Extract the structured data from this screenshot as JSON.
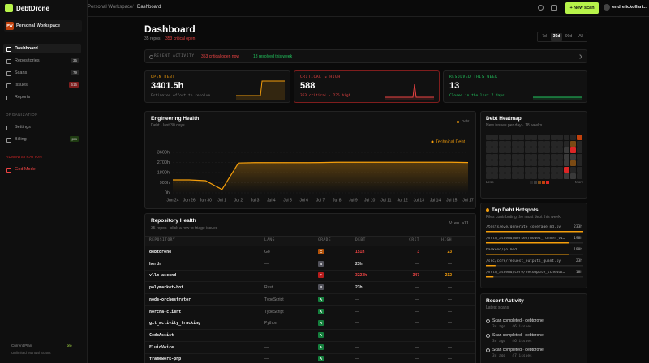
{
  "sidebar": {
    "brand": "DebtDrone",
    "workspace_badge": "PW",
    "workspace": "Personal Workspace",
    "nav": [
      {
        "label": "Dashboard"
      },
      {
        "label": "Repositories",
        "count": 35,
        "badge_color": "#262626"
      },
      {
        "label": "Scans",
        "count": 79,
        "badge_color": "#262626"
      },
      {
        "label": "Issues",
        "count": 515,
        "badge_color": "#7f1d1d"
      },
      {
        "label": "Reports"
      }
    ],
    "org_heading": "ORGANIZATION",
    "org_nav": [
      {
        "label": "Settings"
      },
      {
        "label": "Billing",
        "count": "pro",
        "badge_color": "#1f3b12"
      }
    ],
    "admin_heading": "ADMINISTRATION",
    "admin_nav": [
      {
        "label": "God Mode"
      }
    ],
    "plan_label": "Current Plan",
    "plan": "pro",
    "plan_note": "Unlimited Manual Scans"
  },
  "topbar": {
    "breadcrumb": [
      "Personal Workspace",
      "Dashboard"
    ],
    "separator": "/",
    "new_scan": "+ New scan",
    "user": "endrelickollari..."
  },
  "header": {
    "title": "Dashboard",
    "repos": "35 repos",
    "critical": "353 critical open",
    "ranges": [
      "7d",
      "30d",
      "90d",
      "All"
    ],
    "active_range": 1
  },
  "activity": {
    "label": "RECENT ACTIVITY",
    "critical": "353 critical open now",
    "resolved": "13 resolved this week"
  },
  "stats": [
    {
      "label": "OPEN DEBT",
      "value": "3401.5h",
      "note": "Estimated effort to resolve",
      "color": "#f59e0b"
    },
    {
      "label": "CRITICAL & HIGH",
      "value": "588",
      "note": "353 critical · 235 high",
      "color": "#ef4444"
    },
    {
      "label": "RESOLVED THIS WEEK",
      "value": "13",
      "note": "Closed in the last 7 days",
      "color": "#22c55e"
    }
  ],
  "chart_data": {
    "type": "line",
    "title": "Engineering Health",
    "subtitle": "Debt · last 30 days",
    "legend_label": "Debt",
    "categories": [
      "Jun 24",
      "Jun 26",
      "Jun 30",
      "Jul 1",
      "Jul 2",
      "Jul 3",
      "Jul 4",
      "Jul 5",
      "Jul 6",
      "Jul 7",
      "Jul 8",
      "Jul 9",
      "Jul 10",
      "Jul 11",
      "Jul 12",
      "Jul 13",
      "Jul 14",
      "Jul 15",
      "Jul 17"
    ],
    "series": [
      {
        "name": "Technical Debt",
        "color": "#f59e0b",
        "values": [
          1150,
          1150,
          1080,
          300,
          2650,
          2680,
          2680,
          2680,
          2680,
          2690,
          2720,
          2720,
          2720,
          2720,
          2720,
          2720,
          2720,
          2720,
          2690
        ]
      }
    ],
    "ylim": [
      0,
      3600
    ],
    "yticks": [
      {
        "value": 0,
        "label": "0h"
      },
      {
        "value": 900,
        "label": "900h"
      },
      {
        "value": 1800,
        "label": "1800h"
      },
      {
        "value": 2700,
        "label": "2700h"
      },
      {
        "value": 3600,
        "label": "3600h"
      }
    ],
    "grid": true,
    "area": true
  },
  "heatmap": {
    "title": "Debt Heatmap",
    "subtitle": "New issues per day · 18 weeks",
    "less": "Less",
    "more": "More",
    "colors": [
      "#262626",
      "#3a3a3a",
      "#7a4a14",
      "#c2410c",
      "#dc2626"
    ],
    "values": [
      [
        0,
        0,
        0,
        0,
        0,
        0,
        0,
        0,
        0,
        0,
        0,
        0,
        0,
        0,
        3
      ],
      [
        0,
        0,
        0,
        0,
        0,
        0,
        0,
        0,
        0,
        0,
        0,
        0,
        0,
        2,
        0
      ],
      [
        0,
        0,
        0,
        0,
        0,
        0,
        0,
        0,
        0,
        0,
        0,
        0,
        1,
        4,
        0
      ],
      [
        0,
        0,
        0,
        0,
        0,
        0,
        0,
        0,
        0,
        0,
        0,
        0,
        1,
        1,
        0
      ],
      [
        0,
        0,
        0,
        0,
        0,
        0,
        0,
        0,
        0,
        0,
        0,
        0,
        1,
        2,
        0
      ],
      [
        0,
        0,
        0,
        0,
        0,
        0,
        0,
        0,
        0,
        0,
        0,
        0,
        4,
        0,
        0
      ],
      [
        0,
        0,
        0,
        0,
        0,
        0,
        0,
        0,
        0,
        0,
        0,
        0,
        1,
        1,
        0
      ]
    ]
  },
  "hotspots": {
    "title": "Top Debt Hotspots",
    "subtitle": "Files contributing the most debt this week",
    "files": [
      "/tests/e2e/generate_coverage_md.py",
      "/vllm_ascend/worker/model_runner_v1.py",
      "backend/go.mod",
      "/src/core/request_outputs_quant.py",
      "/vllm_ascend/core/recompute_scheduler.py"
    ],
    "values": [
      233,
      198,
      198,
      23,
      18
    ],
    "value_labels": [
      "233h",
      "198h",
      "198h",
      "23h",
      "18h"
    ],
    "color": "#f59e0b"
  },
  "recent": {
    "title": "Recent Activity",
    "subtitle": "Latest scans",
    "items": [
      {
        "title": "Scan completed · debtdrone",
        "meta": "3d ago · 46 issues"
      },
      {
        "title": "Scan completed · debtdrone",
        "meta": "3d ago · 46 issues"
      },
      {
        "title": "Scan completed · debtdrone",
        "meta": "3d ago · 47 issues"
      }
    ]
  },
  "repo_health": {
    "title": "Repository Health",
    "subtitle": "35 repos · click a row to triage issues",
    "view_all": "View all",
    "columns": [
      "REPOSITORY",
      "LANG",
      "GRADE",
      "DEBT",
      "CRIT",
      "HIGH"
    ],
    "rows": [
      [
        "debtdrone",
        "Go",
        "C",
        "151h",
        "3",
        "23"
      ],
      [
        "herdr",
        "—",
        "B",
        "23h",
        "—",
        "—"
      ],
      [
        "vllm-ascend",
        "—",
        "F",
        "3223h",
        "347",
        "212"
      ],
      [
        "polymarket-bot",
        "Rust",
        "B",
        "23h",
        "—",
        "—"
      ],
      [
        "node-orchestrator",
        "TypeScript",
        "A",
        "—",
        "—",
        "—"
      ],
      [
        "norcha-client",
        "TypeScript",
        "A",
        "—",
        "—",
        "—"
      ],
      [
        "git_activity_tracking",
        "Python",
        "A",
        "—",
        "—",
        "—"
      ],
      [
        "CodeAssist",
        "—",
        "A",
        "—",
        "—",
        "—"
      ],
      [
        "FluidVoice",
        "—",
        "A",
        "—",
        "—",
        "—"
      ],
      [
        "framework-php",
        "—",
        "A",
        "—",
        "—",
        "—"
      ]
    ],
    "grade_colors": [
      "#b45309",
      "#52525b",
      "#b91c1c",
      "#52525b",
      "#15803d",
      "#15803d",
      "#15803d",
      "#15803d",
      "#15803d",
      "#15803d"
    ]
  }
}
